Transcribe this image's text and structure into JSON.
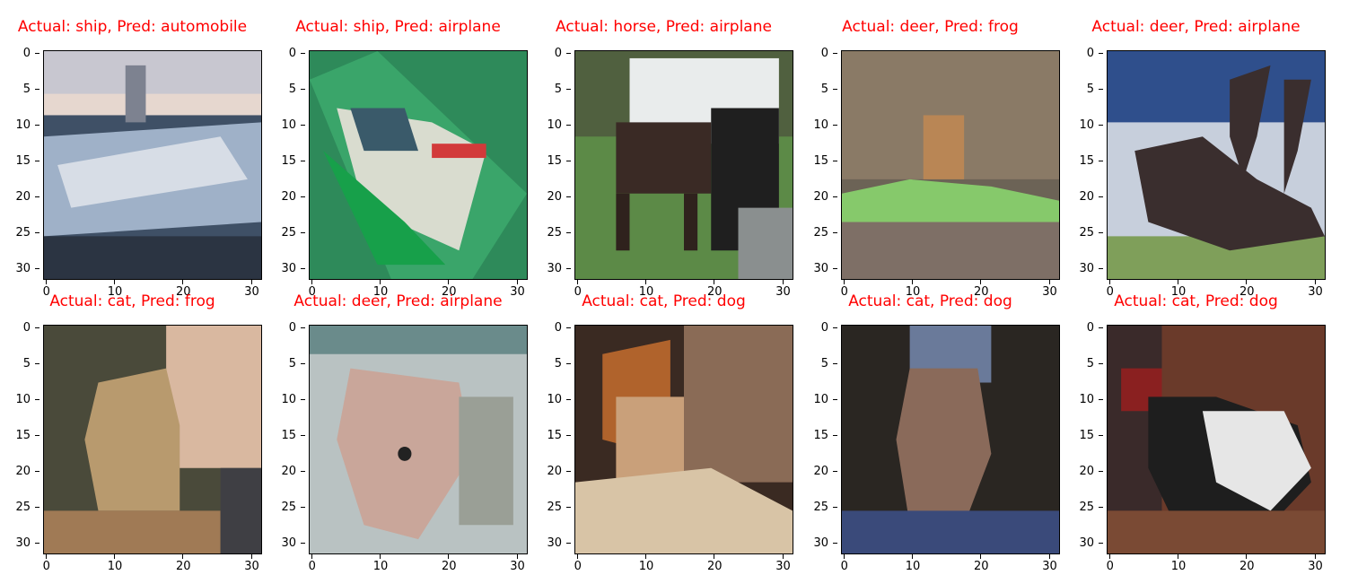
{
  "figure": {
    "panels": [
      {
        "title": "Actual: ship, Pred: automobile",
        "actual": "ship",
        "pred": "automobile",
        "scene": "ship_harbor"
      },
      {
        "title": "Actual: ship, Pred: airplane",
        "actual": "ship",
        "pred": "airplane",
        "scene": "ship_wake"
      },
      {
        "title": "Actual: horse, Pred: airplane",
        "actual": "horse",
        "pred": "airplane",
        "scene": "horse_field"
      },
      {
        "title": "Actual: deer, Pred: frog",
        "actual": "deer",
        "pred": "frog",
        "scene": "deer_brush"
      },
      {
        "title": "Actual: deer, Pred: airplane",
        "actual": "deer",
        "pred": "airplane",
        "scene": "deer_silhouette"
      },
      {
        "title": "Actual: cat, Pred: frog",
        "actual": "cat",
        "pred": "frog",
        "scene": "cat_sitting"
      },
      {
        "title": "Actual: deer, Pred: airplane",
        "actual": "deer",
        "pred": "airplane",
        "scene": "deer_face"
      },
      {
        "title": "Actual: cat, Pred: dog",
        "actual": "cat",
        "pred": "dog",
        "scene": "cat_couch"
      },
      {
        "title": "Actual: cat, Pred: dog",
        "actual": "cat",
        "pred": "dog",
        "scene": "cat_dark"
      },
      {
        "title": "Actual: cat, Pred: dog",
        "actual": "cat",
        "pred": "dog",
        "scene": "cat_black_white"
      }
    ],
    "y_ticks": [
      "0",
      "5",
      "10",
      "15",
      "20",
      "25",
      "30"
    ],
    "x_ticks": [
      "0",
      "10",
      "20",
      "30"
    ],
    "title_color": "#ff0000"
  }
}
